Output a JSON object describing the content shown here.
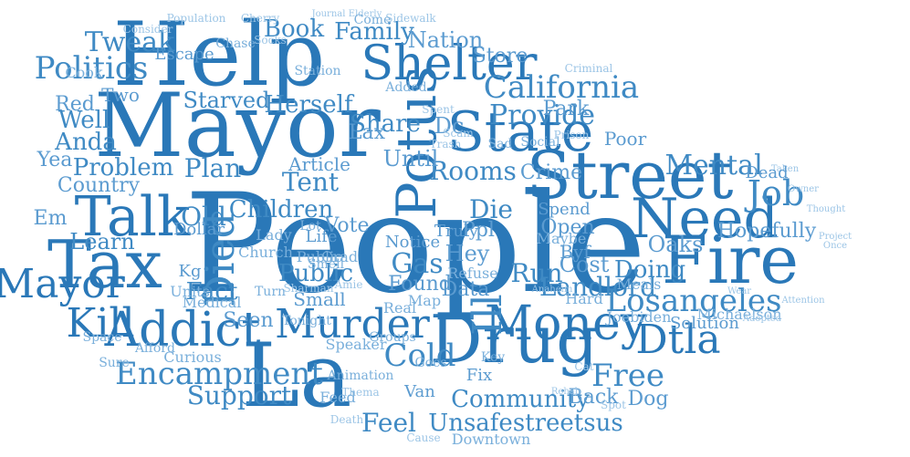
{
  "cloud": {
    "colors": {
      "primary": "#2a78b8",
      "light": "#9cc5e6",
      "background": "#ffffff"
    },
    "words": [
      "People",
      "La",
      "Help",
      "Mayor",
      "Drug",
      "Street",
      "Potus",
      "State",
      "Fire",
      "Need",
      "Tax",
      "Talk",
      "Shelter",
      "Addict",
      "Money",
      "Died",
      "Kill",
      "Mayor",
      "Murder",
      "Dtla",
      "Losangeles",
      "Landlord",
      "Encampment",
      "Free",
      "Job",
      "Mental",
      "California",
      "Provide",
      "Politics",
      "Tweak",
      "Book",
      "Family",
      "Nation",
      "Store",
      "Park",
      "Starved",
      "Herself",
      "Share",
      "Rooms",
      "Tent",
      "Old",
      "Children",
      "Plan",
      "Problem",
      "Country",
      "Learn",
      "Public",
      "Gas",
      "Cold",
      "Ill",
      "Run",
      "Cost",
      "Doing",
      "Support",
      "Feel",
      "Unsafestreetsus",
      "Community",
      "Back",
      "Dog",
      "Fact",
      "Seen",
      "Until",
      "Article",
      "Die",
      "Crime",
      "Open",
      "Data",
      "Found",
      "Hey",
      "Vote",
      "Hopefully",
      "Lax",
      "Dc",
      "Well",
      "Anda",
      "Yea",
      "Em",
      "Red",
      "Two",
      "Cook",
      "Kg",
      "Dollar",
      "Lady",
      "Church",
      "Turn",
      "Medical",
      "Small",
      "Public",
      "Grad",
      "Life",
      "Notice",
      "Truly",
      "Ppl",
      "Spend",
      "Maybe",
      "Oaks",
      "Byf",
      "Solution",
      "Michaelson",
      "Joebiden",
      "Meals",
      "Hard",
      "Real",
      "Refuse",
      "Map",
      "Groups",
      "Speaker",
      "Tonight",
      "Units",
      "Space",
      "Sure",
      "Afford",
      "Curious",
      "Animation",
      "Thema",
      "Goes",
      "Fix",
      "Van",
      "Key",
      "Cat",
      "Feed",
      "Death",
      "Downtown",
      "Cause",
      "Spot",
      "Rehab",
      "Station",
      "Sidewalk",
      "Socks",
      "Chase",
      "Escape",
      "Consider",
      "Population",
      "Cherry",
      "Journal",
      "Elderly",
      "Come",
      "Added",
      "Criminal",
      "Poor",
      "Lot",
      "Wear",
      "Adopted",
      "Attention",
      "Owner",
      "Thought",
      "Project",
      "Once",
      "Taken",
      "Dead",
      "Social",
      "Sharman",
      "Amie",
      "Anaheim",
      "Prison",
      "Trash",
      "Scam",
      "Spent",
      "Sad",
      "Smell"
    ]
  }
}
